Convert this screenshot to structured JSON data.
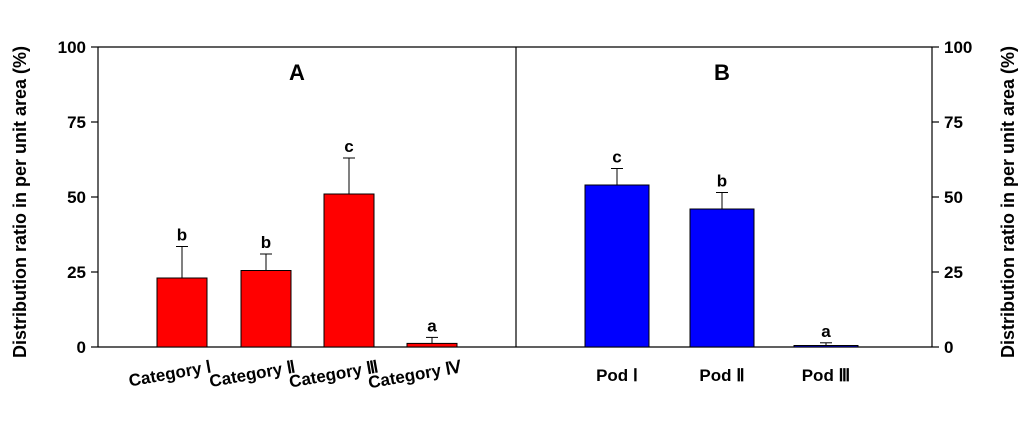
{
  "chart_data": [
    {
      "type": "bar",
      "panel_label": "A",
      "categories": [
        "Category Ⅰ",
        "Category Ⅱ",
        "Category Ⅲ",
        "Category Ⅳ"
      ],
      "values": [
        23,
        25.5,
        51,
        1.2
      ],
      "errors": [
        10.5,
        5.5,
        12,
        2
      ],
      "significance": [
        "b",
        "b",
        "c",
        "a"
      ],
      "color": "#ff0000",
      "ylabel": "Distribution ratio in per unit area (%)",
      "ylim": [
        0,
        100
      ],
      "yticks": [
        "0",
        "25",
        "50",
        "75",
        "100"
      ]
    },
    {
      "type": "bar",
      "panel_label": "B",
      "categories": [
        "Pod Ⅰ",
        "Pod Ⅱ",
        "Pod Ⅲ"
      ],
      "values": [
        54,
        46,
        0.4
      ],
      "errors": [
        5.5,
        5.5,
        1
      ],
      "significance": [
        "c",
        "b",
        "a"
      ],
      "color": "#0000ff",
      "ylabel": "Distribution ratio in per unit area (%)",
      "ylim": [
        0,
        100
      ],
      "yticks": [
        "0",
        "25",
        "50",
        "75",
        "100"
      ]
    }
  ]
}
